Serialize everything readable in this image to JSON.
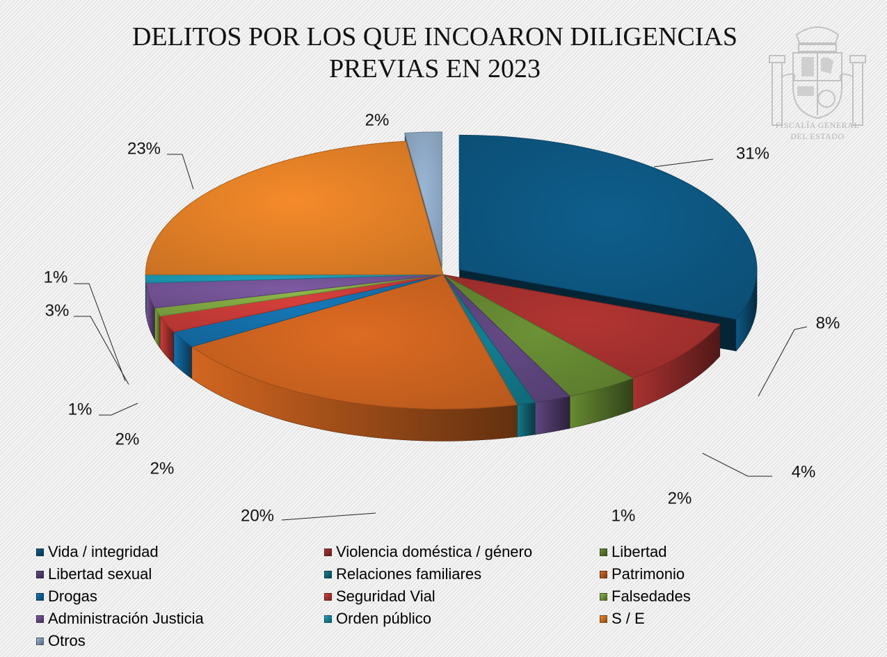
{
  "title": {
    "line1": "DELITOS POR LOS QUE INCOARON DILIGENCIAS",
    "line2": "PREVIAS EN 2023"
  },
  "logo": {
    "icon": "coat-of-arms-icon",
    "line1": "FISCALÍA GENERAL",
    "line2": "DEL ESTADO"
  },
  "chart_data": {
    "type": "pie",
    "title": "DELITOS POR LOS QUE INCOARON DILIGENCIAS PREVIAS EN 2023",
    "unit": "%",
    "legend_position": "bottom",
    "categories": [
      "Vida / integridad",
      "Violencia doméstica / género",
      "Libertad",
      "Libertad sexual",
      "Relaciones familiares",
      "Patrimonio",
      "Drogas",
      "Seguridad Vial",
      "Falsedades",
      "Administración Justicia",
      "Orden público",
      "S / E",
      "Otros"
    ],
    "values": [
      31,
      8,
      4,
      2,
      1,
      20,
      2,
      2,
      1,
      3,
      1,
      23,
      2
    ],
    "labels": [
      "31%",
      "8%",
      "4%",
      "2%",
      "1%",
      "20%",
      "2%",
      "2%",
      "1%",
      "3%",
      "1%",
      "23%",
      "2%"
    ],
    "colors": [
      "#0e5e8c",
      "#b23532",
      "#6c9236",
      "#644a86",
      "#137f92",
      "#dd6b22",
      "#1677b6",
      "#d7403c",
      "#8cb648",
      "#7e5aa2",
      "#20a3bf",
      "#f58a2a",
      "#9ab7d6"
    ]
  }
}
